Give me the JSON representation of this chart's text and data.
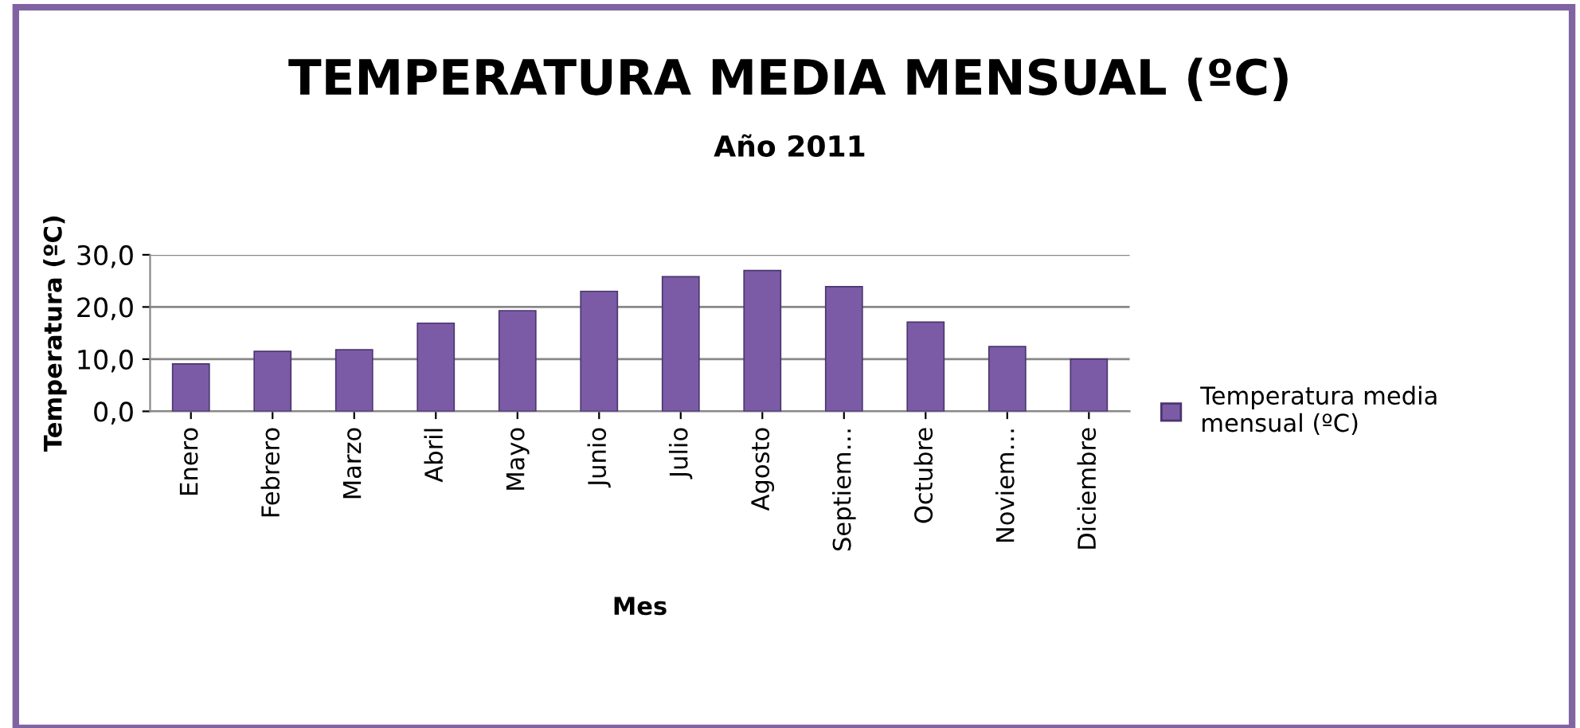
{
  "chart_data": {
    "type": "bar",
    "title": "TEMPERATURA MEDIA MENSUAL (ºC)",
    "subtitle": "Año 2011",
    "xlabel": "Mes",
    "ylabel": "Temperatura (ºC)",
    "categories": [
      "Enero",
      "Febrero",
      "Marzo",
      "Abril",
      "Mayo",
      "Junio",
      "Julio",
      "Agosto",
      "Septiem…",
      "Octubre",
      "Noviem…",
      "Diciembre"
    ],
    "series": [
      {
        "name": "Temperatura media\nmensual (ºC)",
        "color": "#7b5ba6",
        "values": [
          9.1,
          11.5,
          11.8,
          16.9,
          19.3,
          23.0,
          25.8,
          27.0,
          23.9,
          17.1,
          12.4,
          10.0
        ]
      }
    ],
    "ylim": [
      0,
      30
    ],
    "yticks": [
      {
        "value": 0,
        "label": "0,0"
      },
      {
        "value": 10,
        "label": "10,0"
      },
      {
        "value": 20,
        "label": "20,0"
      },
      {
        "value": 30,
        "label": "30,0"
      }
    ],
    "grid": "y",
    "legend": "right"
  }
}
